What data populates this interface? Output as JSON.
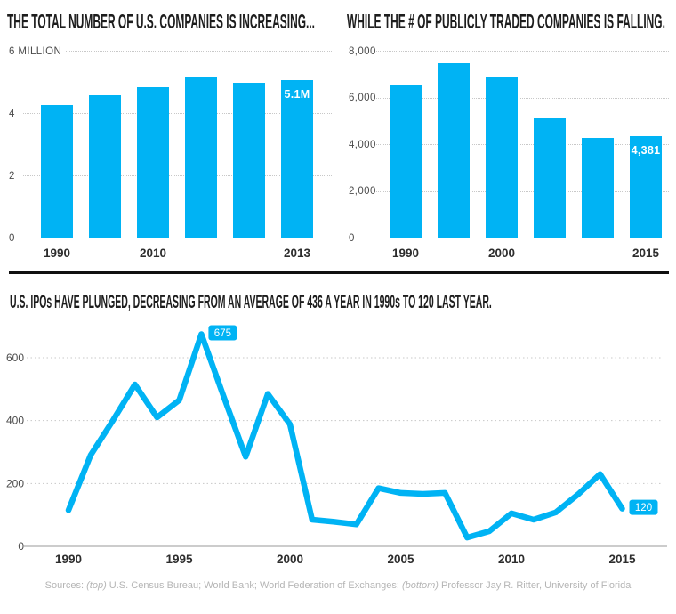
{
  "page": {
    "background": "#ffffff",
    "accent_color": "#00b3f4"
  },
  "chart_data": [
    {
      "type": "bar",
      "title": "THE TOTAL NUMBER OF U.S. COMPANIES IS INCREASING...",
      "unit": "million companies",
      "categories": [
        "1990",
        "",
        "2010",
        "",
        "",
        "2013"
      ],
      "values": [
        4.3,
        4.6,
        4.85,
        5.2,
        5.0,
        5.1
      ],
      "ylim": [
        0,
        6
      ],
      "ytick_labels": [
        "0",
        "2",
        "4",
        "6 MILLION"
      ],
      "bar_label": {
        "index": 5,
        "text": "5.1M"
      },
      "grid": "dotted horizontal",
      "legend": "none"
    },
    {
      "type": "bar",
      "title": "WHILE THE # OF PUBLICLY TRADED COMPANIES IS FALLING.",
      "unit": "companies",
      "categories": [
        "1990",
        "",
        "2000",
        "",
        "",
        "2015"
      ],
      "values": [
        6600,
        7500,
        6900,
        5150,
        4300,
        4381
      ],
      "ylim": [
        0,
        8000
      ],
      "ytick_labels": [
        "0",
        "2,000",
        "4,000",
        "6,000",
        "8,000"
      ],
      "bar_label": {
        "index": 5,
        "text": "4,381"
      },
      "grid": "dotted horizontal",
      "legend": "none"
    },
    {
      "type": "line",
      "title": "U.S. IPOs HAVE PLUNGED, DECREASING FROM AN AVERAGE OF 436 A YEAR IN 1990s TO 120 LAST YEAR.",
      "unit": "IPOs per year",
      "x": [
        1990,
        1991,
        1992,
        1993,
        1994,
        1995,
        1996,
        1997,
        1998,
        1999,
        2000,
        2001,
        2002,
        2003,
        2004,
        2005,
        2006,
        2007,
        2008,
        2009,
        2010,
        2011,
        2012,
        2013,
        2014,
        2015
      ],
      "values": [
        115,
        290,
        400,
        515,
        410,
        465,
        675,
        478,
        285,
        485,
        388,
        85,
        78,
        70,
        185,
        170,
        167,
        170,
        28,
        48,
        105,
        85,
        108,
        165,
        230,
        120
      ],
      "ylim": [
        0,
        700
      ],
      "yticks": [
        0,
        200,
        400,
        600
      ],
      "ytick_labels": [
        "0",
        "200",
        "400",
        "600"
      ],
      "xticks": [
        1990,
        1995,
        2000,
        2005,
        2010,
        2015
      ],
      "annotations": [
        {
          "x": 1996,
          "value": 675,
          "text": "675"
        },
        {
          "x": 2015,
          "value": 120,
          "text": "120"
        }
      ],
      "grid": "dotted horizontal",
      "legend": "none"
    }
  ],
  "footer": {
    "prefix": "Sources: ",
    "top_label": "(top)",
    "top_text": " U.S. Census Bureau; World Bank; World Federation of Exchanges; ",
    "bottom_label": "(bottom)",
    "bottom_text": " Professor Jay R. Ritter, University of Florida"
  }
}
